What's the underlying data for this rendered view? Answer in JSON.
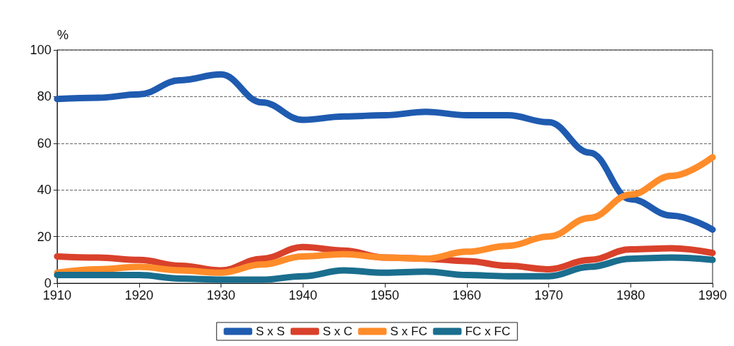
{
  "chart_data": {
    "type": "line",
    "ylabel": "%",
    "x": [
      1910,
      1915,
      1920,
      1925,
      1930,
      1935,
      1940,
      1945,
      1950,
      1955,
      1960,
      1965,
      1970,
      1975,
      1980,
      1985,
      1990
    ],
    "xlim": [
      1910,
      1990
    ],
    "xticks": [
      1910,
      1920,
      1930,
      1940,
      1950,
      1960,
      1970,
      1980,
      1990
    ],
    "ylim": [
      0,
      100
    ],
    "yticks": [
      0,
      20,
      40,
      60,
      80,
      100
    ],
    "grid": "y",
    "legend": "bottom",
    "marker": "none",
    "line_style": "solid",
    "series": [
      {
        "name": "S x S",
        "color": "#1f5bb0",
        "values": [
          79,
          79.5,
          81,
          87,
          89.5,
          77.5,
          70,
          71.5,
          72,
          73.5,
          72,
          72,
          69,
          56,
          36,
          29,
          23
        ]
      },
      {
        "name": "S x C",
        "color": "#d9412b",
        "values": [
          11.5,
          11,
          10,
          7.5,
          5.5,
          10.5,
          15.5,
          14,
          11,
          10.5,
          9.5,
          7.5,
          6,
          10,
          14.5,
          15,
          13
        ]
      },
      {
        "name": "S x FC",
        "color": "#ff8c2a",
        "values": [
          4.5,
          6,
          7,
          5.5,
          4.5,
          8,
          11.5,
          12.5,
          11,
          10.5,
          13.5,
          16,
          20,
          28,
          38,
          46,
          54
        ]
      },
      {
        "name": "FC x FC",
        "color": "#1a6e8e",
        "values": [
          3.5,
          3.5,
          3.5,
          2,
          1.5,
          1.5,
          3,
          5.5,
          4.5,
          5,
          3.5,
          3,
          3,
          7,
          10.5,
          11,
          10
        ]
      }
    ]
  }
}
